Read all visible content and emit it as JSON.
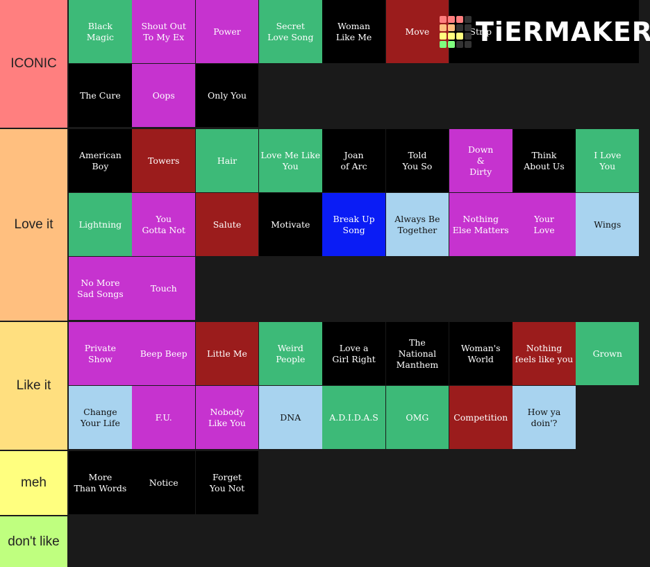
{
  "logo": "TiERMAKER",
  "tiers": [
    {
      "label": "ICONIC",
      "color": "#ff7f7f",
      "items": [
        {
          "text": "Black\nMagic",
          "color": "#3dba78"
        },
        {
          "text": "Shout Out\nTo My Ex",
          "color": "#c633cf"
        },
        {
          "text": "Power",
          "color": "#c633cf"
        },
        {
          "text": "Secret\nLove Song",
          "color": "#3dba78"
        },
        {
          "text": "Woman\nLike Me",
          "color": "#000000"
        },
        {
          "text": "Move",
          "color": "#9b1c1c"
        },
        {
          "text": "Strip",
          "color": "#000000"
        },
        {
          "color": "#000000"
        },
        {
          "color": "#000000"
        },
        {
          "text": "The Cure",
          "color": "#000000"
        },
        {
          "text": "Oops",
          "color": "#c633cf"
        },
        {
          "text": "Only You",
          "color": "#000000"
        }
      ]
    },
    {
      "label": "Love it",
      "color": "#ffbf7f",
      "items": [
        {
          "text": "American\nBoy",
          "color": "#000000"
        },
        {
          "text": "Towers",
          "color": "#9b1c1c"
        },
        {
          "text": "Hair",
          "color": "#3dba78"
        },
        {
          "text": "Love Me Like\nYou",
          "color": "#3dba78"
        },
        {
          "text": "Joan\nof Arc",
          "color": "#000000"
        },
        {
          "text": "Told\nYou So",
          "color": "#000000"
        },
        {
          "text": "Down\n&\nDirty",
          "color": "#c633cf"
        },
        {
          "text": "Think\nAbout Us",
          "color": "#000000"
        },
        {
          "text": "I Love\nYou",
          "color": "#3dba78"
        },
        {
          "text": "Lightning",
          "color": "#3dba78"
        },
        {
          "text": "You\nGotta Not",
          "color": "#c633cf"
        },
        {
          "text": "Salute",
          "color": "#9b1c1c"
        },
        {
          "text": "Motivate",
          "color": "#000000"
        },
        {
          "text": "Break Up\nSong",
          "color": "#0a1cf5"
        },
        {
          "text": "Always Be\nTogether",
          "color": "#a8d3ef"
        },
        {
          "text": "Nothing\nElse Matters",
          "color": "#c633cf"
        },
        {
          "text": "Your\nLove",
          "color": "#c633cf"
        },
        {
          "text": "Wings",
          "color": "#a8d3ef"
        },
        {
          "text": "No More\nSad Songs",
          "color": "#c633cf"
        },
        {
          "text": "Touch",
          "color": "#c633cf"
        }
      ]
    },
    {
      "label": "Like it",
      "color": "#ffdf7f",
      "items": [
        {
          "text": "Private\nShow",
          "color": "#c633cf"
        },
        {
          "text": "Beep Beep",
          "color": "#c633cf"
        },
        {
          "text": "Little Me",
          "color": "#9b1c1c"
        },
        {
          "text": "Weird\nPeople",
          "color": "#3dba78"
        },
        {
          "text": "Love a\nGirl Right",
          "color": "#000000"
        },
        {
          "text": "The\nNational\nManthem",
          "color": "#000000"
        },
        {
          "text": "Woman's\nWorld",
          "color": "#000000"
        },
        {
          "text": "Nothing\nfeels like you",
          "color": "#9b1c1c"
        },
        {
          "text": "Grown",
          "color": "#3dba78"
        },
        {
          "text": "Change\nYour Life",
          "color": "#a8d3ef"
        },
        {
          "text": "F.U.",
          "color": "#c633cf"
        },
        {
          "text": "Nobody\nLike You",
          "color": "#c633cf"
        },
        {
          "text": "DNA",
          "color": "#a8d3ef"
        },
        {
          "text": "A.D.I.D.A.S",
          "color": "#3dba78"
        },
        {
          "text": "OMG",
          "color": "#3dba78"
        },
        {
          "text": "Competition",
          "color": "#9b1c1c"
        },
        {
          "text": "How ya\ndoin'?",
          "color": "#a8d3ef"
        }
      ]
    },
    {
      "label": "meh",
      "color": "#ffff7f",
      "items": [
        {
          "text": "More\nThan Words",
          "color": "#000000"
        },
        {
          "text": "Notice",
          "color": "#000000"
        },
        {
          "text": "Forget\nYou Not",
          "color": "#000000"
        }
      ]
    },
    {
      "label": "don't like",
      "color": "#bfff7f",
      "items": []
    }
  ]
}
